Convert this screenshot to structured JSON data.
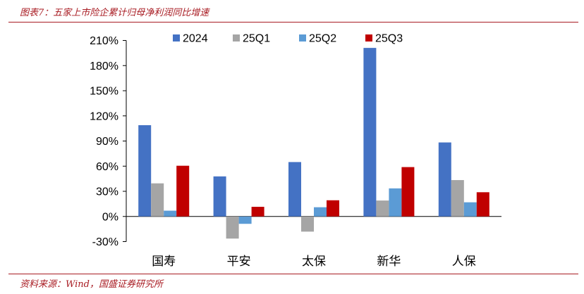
{
  "figure": {
    "title": "图表7：五家上市险企累计归母净利润同比增速",
    "source": "资料来源：Wind，国盛证券研究所"
  },
  "chart_data": {
    "type": "bar",
    "categories": [
      "国寿",
      "平安",
      "太保",
      "新华",
      "人保"
    ],
    "series": [
      {
        "name": "2024",
        "color": "#4472c4",
        "values": [
          108.9,
          47.8,
          64.9,
          201.1,
          88.3
        ]
      },
      {
        "name": "25Q1",
        "color": "#a5a5a5",
        "values": [
          39.5,
          -26.4,
          -18.1,
          19.0,
          43.4
        ]
      },
      {
        "name": "25Q2",
        "color": "#5b9bd5",
        "values": [
          6.9,
          -8.8,
          11.0,
          33.5,
          16.9
        ]
      },
      {
        "name": "25Q3",
        "color": "#c00000",
        "values": [
          60.5,
          11.5,
          19.3,
          58.9,
          28.9
        ]
      }
    ],
    "y_ticks": [
      "-30%",
      "0%",
      "30%",
      "60%",
      "90%",
      "120%",
      "150%",
      "180%",
      "210%"
    ],
    "y_tick_values": [
      -30,
      0,
      30,
      60,
      90,
      120,
      150,
      180,
      210
    ],
    "ylim": [
      -30,
      210
    ],
    "y_unit": "%",
    "legend_position": "top",
    "grid": false
  }
}
